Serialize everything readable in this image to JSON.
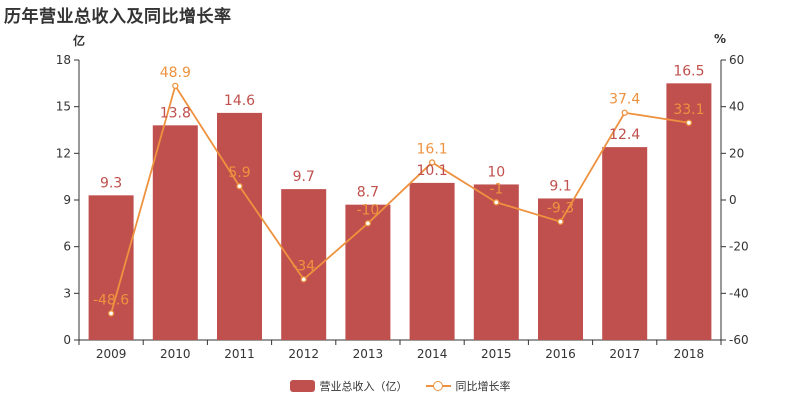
{
  "chart_data": {
    "type": "bar",
    "title": "历年营业总收入及同比增长率",
    "categories": [
      "2009",
      "2010",
      "2011",
      "2012",
      "2013",
      "2014",
      "2015",
      "2016",
      "2017",
      "2018"
    ],
    "series": [
      {
        "name": "营业总收入（亿）",
        "type": "bar",
        "axis": "left",
        "color": "#c0504d",
        "values": [
          9.3,
          13.8,
          14.6,
          9.7,
          8.7,
          10.1,
          10,
          9.1,
          12.4,
          16.5
        ]
      },
      {
        "name": "同比增长率",
        "type": "line",
        "axis": "right",
        "color": "#ee9240",
        "values": [
          -48.6,
          48.9,
          5.9,
          -34,
          -10,
          16.1,
          -1,
          -9.3,
          37.4,
          33.1
        ]
      }
    ],
    "ylabel_left": "亿",
    "ylabel_right": "%",
    "ylim_left": [
      0,
      18
    ],
    "ylim_right": [
      -60,
      60
    ],
    "yticks_left": [
      0,
      3,
      6,
      9,
      12,
      15,
      18
    ],
    "yticks_right": [
      -60,
      -40,
      -20,
      0,
      20,
      40,
      60
    ],
    "grid": false,
    "legend_position": "bottom-center"
  }
}
